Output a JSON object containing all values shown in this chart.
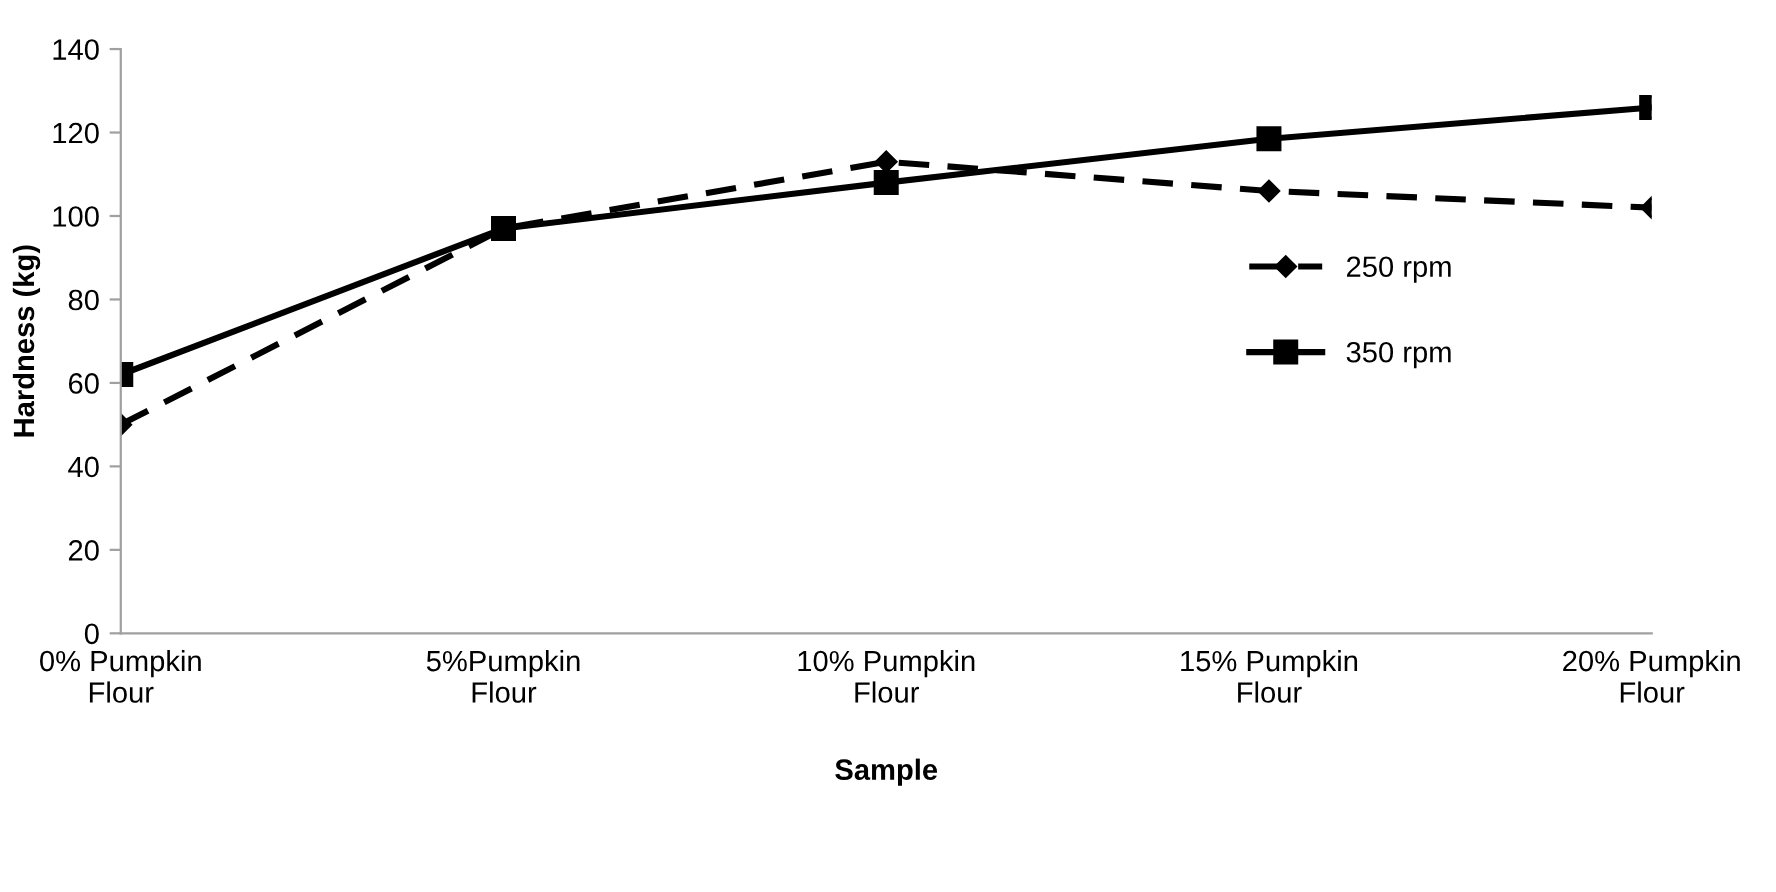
{
  "chart_data": {
    "type": "line",
    "xlabel": "Sample",
    "ylabel": "Hardness (kg)",
    "categories": [
      "0% Pumpkin\nFlour",
      "5%Pumpkin\nFlour",
      "10% Pumpkin\nFlour",
      "15% Pumpkin\nFlour",
      "20% Pumpkin\nFlour"
    ],
    "series": [
      {
        "name": "250 rpm",
        "color": "#000000",
        "marker": "diamond",
        "line_style": "dashed",
        "values": [
          50,
          97,
          113,
          106,
          102
        ]
      },
      {
        "name": "350 rpm",
        "color": "#000000",
        "marker": "square",
        "line_style": "solid",
        "values": [
          62,
          97,
          108,
          118.5,
          126
        ]
      }
    ],
    "ylim": [
      0,
      140
    ],
    "yticks": [
      0,
      20,
      40,
      60,
      80,
      100,
      120,
      140
    ],
    "grid": false,
    "legend": "right"
  }
}
